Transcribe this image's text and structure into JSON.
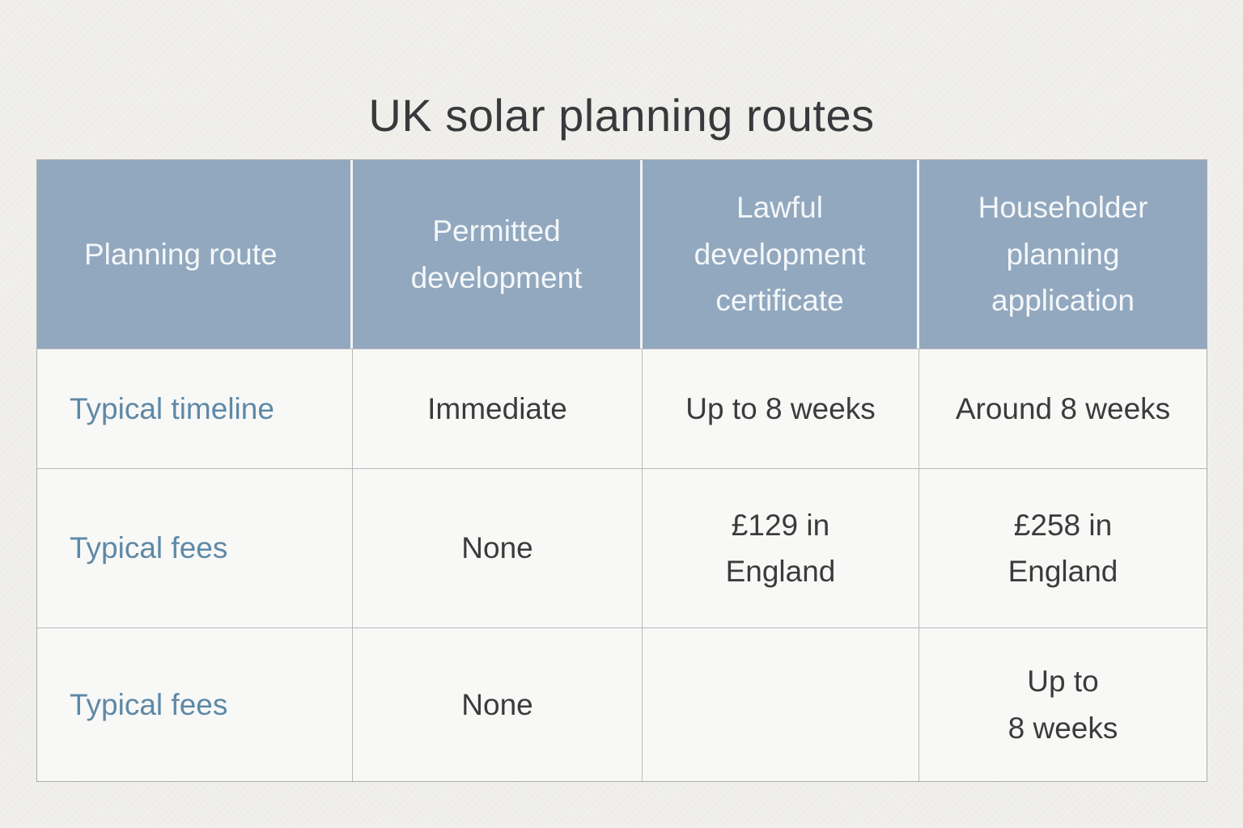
{
  "title": "UK solar planning routes",
  "table": {
    "columns": [
      "Planning route",
      "Permitted development",
      "Lawful development certificate",
      "Householder planning application"
    ],
    "rows": [
      {
        "label": "Typical timeline",
        "values": [
          "Immediate",
          "Up to 8 weeks",
          "Around 8 weeks"
        ]
      },
      {
        "label": "Typical fees",
        "values": [
          "None",
          "£129 in\nEngland",
          "£258 in\nEngland"
        ]
      },
      {
        "label": "Typical fees",
        "values": [
          "None",
          "",
          "Up to\n8 weeks"
        ]
      }
    ]
  },
  "colors": {
    "header_background": "#92a8bf",
    "header_text": "#f4f7f9",
    "row_label_text": "#5e89a7",
    "body_text": "#3b3b3b",
    "grid_line": "#b9b9b9",
    "page_background": "#f2f1ee",
    "cell_background": "#f8f8f7"
  }
}
